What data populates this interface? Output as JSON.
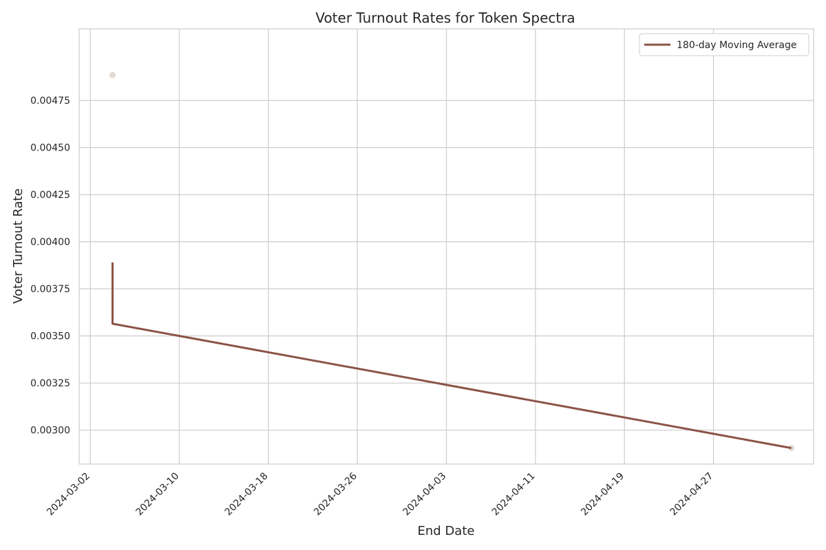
{
  "chart_data": {
    "type": "line",
    "title": "Voter Turnout Rates for Token Spectra",
    "xlabel": "End Date",
    "ylabel": "Voter Turnout Rate",
    "x_ticks": [
      "2024-03-02",
      "2024-03-10",
      "2024-03-18",
      "2024-03-26",
      "2024-04-03",
      "2024-04-11",
      "2024-04-19",
      "2024-04-27"
    ],
    "y_ticks": [
      "0.00300",
      "0.00325",
      "0.00350",
      "0.00375",
      "0.00400",
      "0.00425",
      "0.00450",
      "0.00475"
    ],
    "xlim": [
      "2024-03-01",
      "2024-05-06"
    ],
    "ylim": [
      0.00282,
      0.00513
    ],
    "grid": true,
    "legend_position": "top-right",
    "series": [
      {
        "name": "180-day Moving Average",
        "kind": "line",
        "color": "#8b5347",
        "points": [
          {
            "x": "2024-03-04",
            "y": 0.00389
          },
          {
            "x": "2024-03-04",
            "y": 0.003565
          },
          {
            "x": "2024-05-04",
            "y": 0.002905
          }
        ]
      },
      {
        "kind": "scatter",
        "color": "#e5d8d4",
        "points": [
          {
            "x": "2024-03-04",
            "y": 0.004885
          },
          {
            "x": "2024-05-04",
            "y": 0.002905
          }
        ]
      }
    ]
  }
}
